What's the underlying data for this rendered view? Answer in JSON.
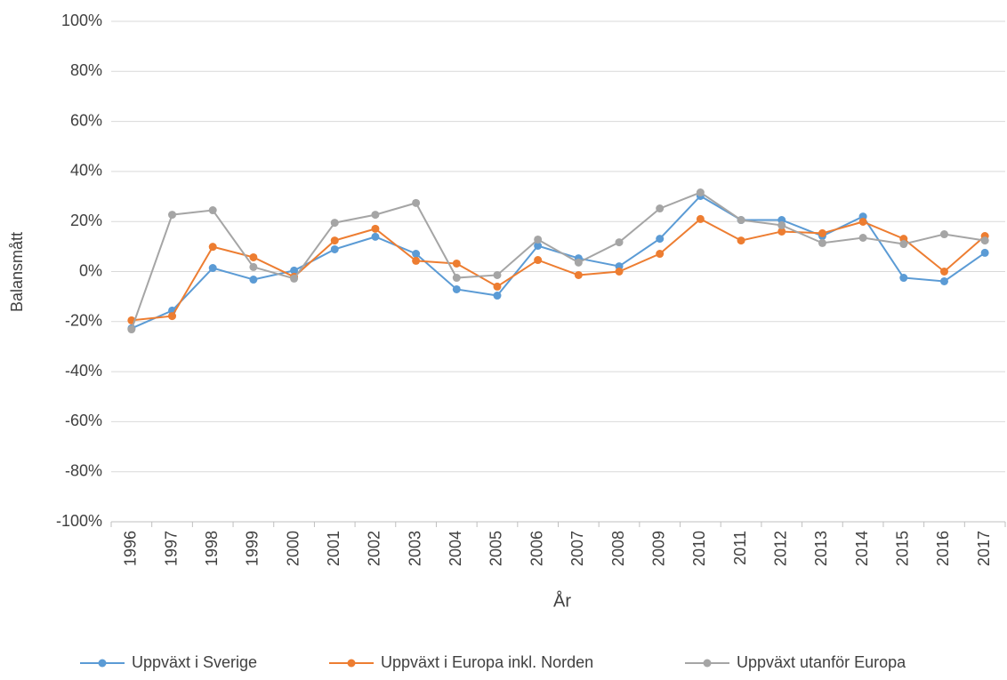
{
  "chart_data": {
    "type": "line",
    "x_label": "År",
    "y_label": "Balansmått",
    "categories": [
      "1996",
      "1997",
      "1998",
      "1999",
      "2000",
      "2001",
      "2002",
      "2003",
      "2004",
      "2005",
      "2006",
      "2007",
      "2008",
      "2009",
      "2010",
      "2011",
      "2012",
      "2013",
      "2014",
      "2015",
      "2016",
      "2017"
    ],
    "series": [
      {
        "name": "Uppväxt i Sverige",
        "color": "#5b9bd5",
        "values": [
          -22.7,
          -15.6,
          1.4,
          -3.2,
          0.4,
          8.9,
          13.9,
          7.1,
          -7.1,
          -9.6,
          10.3,
          5.3,
          2.1,
          13.1,
          30.2,
          20.6,
          20.6,
          14.2,
          22.0,
          -2.5,
          -3.9,
          7.5
        ]
      },
      {
        "name": "Uppväxt i Europa inkl. Norden",
        "color": "#ed7d31",
        "values": [
          -19.5,
          -17.8,
          9.9,
          5.7,
          -2.1,
          12.4,
          17.1,
          4.3,
          3.2,
          -6.0,
          4.6,
          -1.4,
          0,
          7.1,
          21.0,
          12.4,
          16.0,
          15.3,
          19.9,
          13.1,
          0,
          14.2
        ]
      },
      {
        "name": "Uppväxt utanför Europa",
        "color": "#a5a5a5",
        "values": [
          -23.1,
          22.7,
          24.5,
          1.8,
          -2.8,
          19.5,
          22.7,
          27.4,
          -2.5,
          -1.4,
          12.8,
          3.6,
          11.7,
          25.2,
          31.6,
          20.6,
          18.5,
          11.4,
          13.5,
          11.0,
          14.9,
          12.4
        ]
      }
    ],
    "ylim": [
      -100,
      100
    ],
    "yticks": [
      {
        "value": -100,
        "label": "-100%"
      },
      {
        "value": -80,
        "label": "-80%"
      },
      {
        "value": -60,
        "label": "-60%"
      },
      {
        "value": -40,
        "label": "-40%"
      },
      {
        "value": -20,
        "label": "-20%"
      },
      {
        "value": 0,
        "label": "0%"
      },
      {
        "value": 20,
        "label": "20%"
      },
      {
        "value": 40,
        "label": "40%"
      },
      {
        "value": 60,
        "label": "60%"
      },
      {
        "value": 80,
        "label": "80%"
      },
      {
        "value": 100,
        "label": "100%"
      }
    ],
    "grid": true,
    "legend": "bottom"
  }
}
